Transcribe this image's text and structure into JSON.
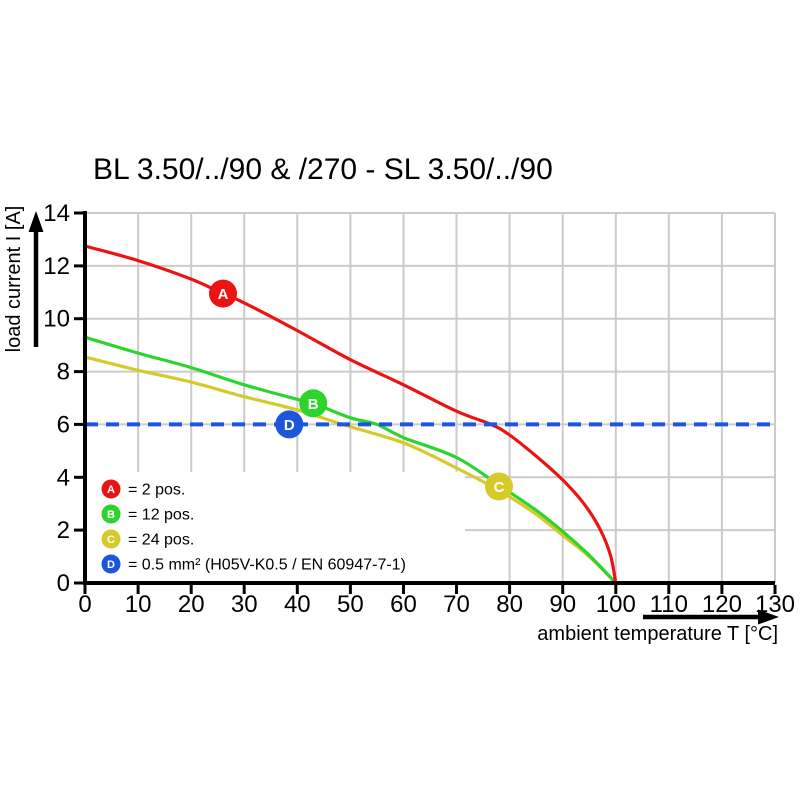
{
  "chart_data": {
    "type": "line",
    "title": "BL 3.50/../90 & /270 - SL 3.50/../90",
    "xlabel": "ambient temperature T [°C]",
    "ylabel": "load current I [A]",
    "xlim": [
      0,
      130
    ],
    "ylim": [
      0,
      14
    ],
    "xticks": [
      0,
      10,
      20,
      30,
      40,
      50,
      60,
      70,
      80,
      90,
      100,
      110,
      120,
      130
    ],
    "yticks": [
      0,
      2,
      4,
      6,
      8,
      10,
      12,
      14
    ],
    "grid": true,
    "grid_color": "#cbcbcb",
    "axis_color": "#000000",
    "legend_position": "bottom-left",
    "series": [
      {
        "id": "C",
        "name": "24 pos.",
        "color": "#d6ca28",
        "style": "solid",
        "points": [
          [
            0,
            8.55
          ],
          [
            10,
            8.05
          ],
          [
            20,
            7.6
          ],
          [
            30,
            7.05
          ],
          [
            40,
            6.55
          ],
          [
            48.5,
            6.0
          ],
          [
            60,
            5.3
          ],
          [
            70,
            4.35
          ],
          [
            78,
            3.5
          ],
          [
            85,
            2.6
          ],
          [
            90,
            1.8
          ],
          [
            95,
            1.0
          ],
          [
            100,
            0
          ]
        ],
        "marker": {
          "x": 78,
          "y": 3.65,
          "label": "C"
        }
      },
      {
        "id": "B",
        "name": "12 pos.",
        "color": "#2ed42e",
        "style": "solid",
        "points": [
          [
            0,
            9.3
          ],
          [
            10,
            8.7
          ],
          [
            20,
            8.15
          ],
          [
            30,
            7.5
          ],
          [
            40,
            6.95
          ],
          [
            43,
            6.8
          ],
          [
            50,
            6.25
          ],
          [
            55,
            6.0
          ],
          [
            60,
            5.5
          ],
          [
            70,
            4.75
          ],
          [
            78,
            3.7
          ],
          [
            85,
            2.75
          ],
          [
            90,
            1.95
          ],
          [
            95,
            1.05
          ],
          [
            100,
            0
          ]
        ],
        "marker": {
          "x": 43,
          "y": 6.8,
          "label": "B"
        }
      },
      {
        "id": "A",
        "name": "2 pos.",
        "color": "#ec1313",
        "style": "solid",
        "points": [
          [
            0,
            12.75
          ],
          [
            10,
            12.2
          ],
          [
            20,
            11.5
          ],
          [
            26,
            10.95
          ],
          [
            30,
            10.6
          ],
          [
            40,
            9.55
          ],
          [
            50,
            8.45
          ],
          [
            60,
            7.5
          ],
          [
            70,
            6.5
          ],
          [
            76.5,
            6.0
          ],
          [
            80,
            5.6
          ],
          [
            85,
            4.8
          ],
          [
            90,
            3.9
          ],
          [
            94,
            3.0
          ],
          [
            97,
            2.05
          ],
          [
            99,
            1.05
          ],
          [
            100,
            0
          ]
        ],
        "marker": {
          "x": 26,
          "y": 10.95,
          "label": "A"
        }
      },
      {
        "id": "D",
        "name": "0.5 mm² (H05V-K0.5 / EN 60947-7-1)",
        "color": "#1c56dd",
        "style": "dashed",
        "points": [
          [
            0,
            6
          ],
          [
            130,
            6
          ]
        ],
        "marker": {
          "x": 38.5,
          "y": 6,
          "label": "D"
        }
      }
    ],
    "legend": [
      {
        "letter": "A",
        "text": "= 2 pos.",
        "color": "#ec1313"
      },
      {
        "letter": "B",
        "text": "= 12 pos.",
        "color": "#2ed42e"
      },
      {
        "letter": "C",
        "text": "= 24 pos.",
        "color": "#d6ca28"
      },
      {
        "letter": "D",
        "text": "= 0.5 mm² (H05V-K0.5 / EN 60947-7-1)",
        "color": "#1c56dd"
      }
    ]
  }
}
